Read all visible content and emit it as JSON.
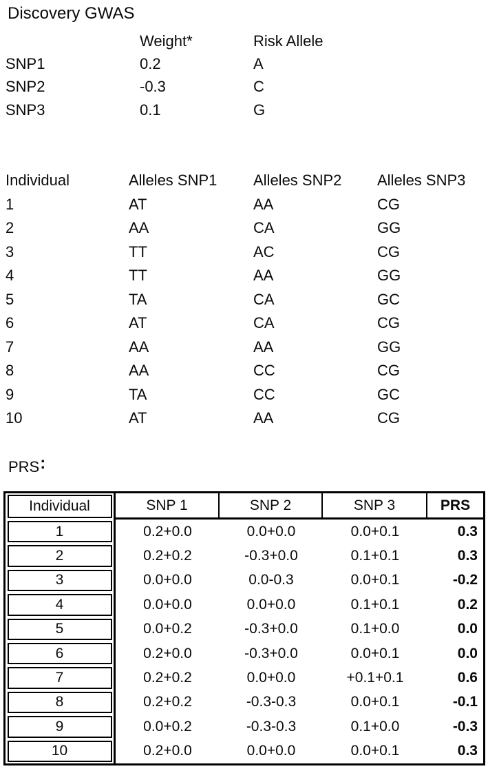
{
  "colors": {
    "text": "#0a0a0a",
    "background": "#ffffff",
    "table_border": "#000000"
  },
  "discovery_gwas": {
    "title": "Discovery GWAS",
    "col_weight": "Weight*",
    "col_risk_allele": "Risk Allele",
    "rows": [
      {
        "snp": "SNP1",
        "weight": "0.2",
        "risk_allele": "A"
      },
      {
        "snp": "SNP2",
        "weight": "-0.3",
        "risk_allele": "C"
      },
      {
        "snp": "SNP3",
        "weight": "0.1",
        "risk_allele": "G"
      }
    ]
  },
  "genotype_table": {
    "col_individual": "Individual",
    "col_snp1": "Alleles SNP1",
    "col_snp2": "Alleles SNP2",
    "col_snp3": "Alleles SNP3",
    "rows": [
      {
        "individual": "1",
        "snp1": "AT",
        "snp2": "AA",
        "snp3": "CG"
      },
      {
        "individual": "2",
        "snp1": "AA",
        "snp2": "CA",
        "snp3": "GG"
      },
      {
        "individual": "3",
        "snp1": "TT",
        "snp2": "AC",
        "snp3": "CG"
      },
      {
        "individual": "4",
        "snp1": "TT",
        "snp2": "AA",
        "snp3": "GG"
      },
      {
        "individual": "5",
        "snp1": "TA",
        "snp2": "CA",
        "snp3": "GC"
      },
      {
        "individual": "6",
        "snp1": "AT",
        "snp2": "CA",
        "snp3": "CG"
      },
      {
        "individual": "7",
        "snp1": "AA",
        "snp2": "AA",
        "snp3": "GG"
      },
      {
        "individual": "8",
        "snp1": "AA",
        "snp2": "CC",
        "snp3": "CG"
      },
      {
        "individual": "9",
        "snp1": "TA",
        "snp2": "CC",
        "snp3": "GC"
      },
      {
        "individual": "10",
        "snp1": "AT",
        "snp2": "AA",
        "snp3": "CG"
      }
    ]
  },
  "prs_section": {
    "label": "PRS",
    "label_colon": ":",
    "table": {
      "col_individual": "Individual",
      "col_snp1": "SNP 1",
      "col_snp2": "SNP 2",
      "col_snp3": "SNP 3",
      "col_prs": "PRS",
      "rows": [
        {
          "individual": "1",
          "snp1": "0.2+0.0",
          "snp2": "0.0+0.0",
          "snp3": "0.0+0.1",
          "prs": "0.3"
        },
        {
          "individual": "2",
          "snp1": "0.2+0.2",
          "snp2": "-0.3+0.0",
          "snp3": "0.1+0.1",
          "prs": "0.3"
        },
        {
          "individual": "3",
          "snp1": "0.0+0.0",
          "snp2": "0.0-0.3",
          "snp3": "0.0+0.1",
          "prs": "-0.2"
        },
        {
          "individual": "4",
          "snp1": "0.0+0.0",
          "snp2": "0.0+0.0",
          "snp3": "0.1+0.1",
          "prs": "0.2"
        },
        {
          "individual": "5",
          "snp1": "0.0+0.2",
          "snp2": "-0.3+0.0",
          "snp3": "0.1+0.0",
          "prs": "0.0"
        },
        {
          "individual": "6",
          "snp1": "0.2+0.0",
          "snp2": "-0.3+0.0",
          "snp3": "0.0+0.1",
          "prs": "0.0"
        },
        {
          "individual": "7",
          "snp1": "0.2+0.2",
          "snp2": "0.0+0.0",
          "snp3": "+0.1+0.1",
          "prs": "0.6"
        },
        {
          "individual": "8",
          "snp1": "0.2+0.2",
          "snp2": "-0.3-0.3",
          "snp3": "0.0+0.1",
          "prs": "-0.1"
        },
        {
          "individual": "9",
          "snp1": "0.0+0.2",
          "snp2": "-0.3-0.3",
          "snp3": "0.1+0.0",
          "prs": "-0.3"
        },
        {
          "individual": "10",
          "snp1": "0.2+0.0",
          "snp2": "0.0+0.0",
          "snp3": "0.0+0.1",
          "prs": "0.3"
        }
      ]
    }
  }
}
